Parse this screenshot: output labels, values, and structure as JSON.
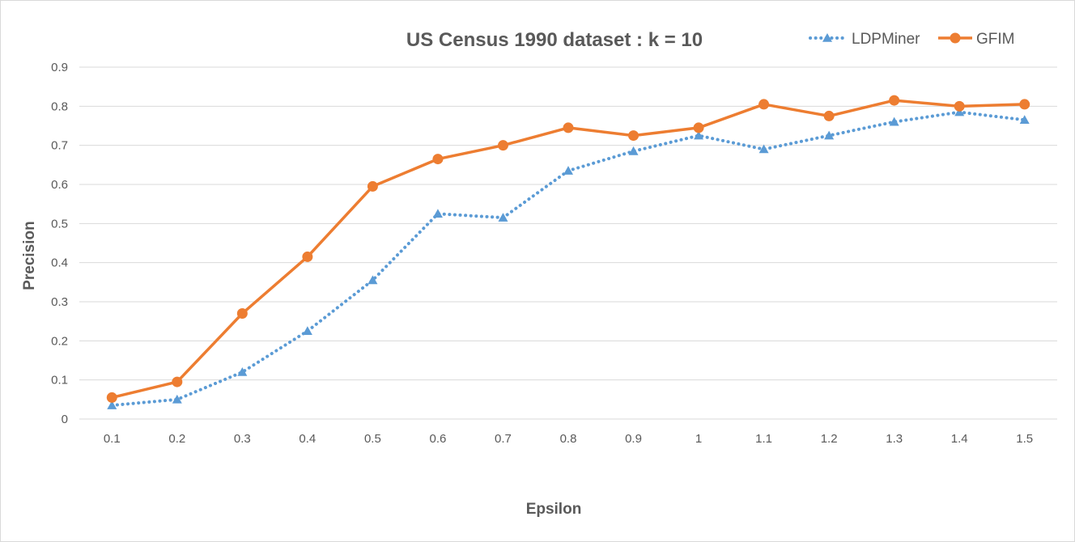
{
  "chart_data": {
    "type": "line",
    "title": "US Census 1990 dataset : k = 10",
    "xlabel": "Epsilon",
    "ylabel": "Precision",
    "categories": [
      "0.1",
      "0.2",
      "0.3",
      "0.4",
      "0.5",
      "0.6",
      "0.7",
      "0.8",
      "0.9",
      "1",
      "1.1",
      "1.2",
      "1.3",
      "1.4",
      "1.5"
    ],
    "y_ticks": [
      "0",
      "0.1",
      "0.2",
      "0.3",
      "0.4",
      "0.5",
      "0.6",
      "0.7",
      "0.8",
      "0.9"
    ],
    "ylim": [
      0,
      0.9
    ],
    "grid": true,
    "legend_position": "top-right",
    "series": [
      {
        "name": "LDPMiner",
        "color": "#5b9bd5",
        "line_style": "dotted",
        "marker": "triangle",
        "values": [
          0.035,
          0.05,
          0.12,
          0.225,
          0.355,
          0.525,
          0.515,
          0.635,
          0.685,
          0.725,
          0.69,
          0.725,
          0.76,
          0.785,
          0.765
        ]
      },
      {
        "name": "GFIM",
        "color": "#ed7d31",
        "line_style": "solid",
        "marker": "circle",
        "values": [
          0.055,
          0.095,
          0.27,
          0.415,
          0.595,
          0.665,
          0.7,
          0.745,
          0.725,
          0.745,
          0.805,
          0.775,
          0.815,
          0.8,
          0.805
        ]
      }
    ]
  }
}
